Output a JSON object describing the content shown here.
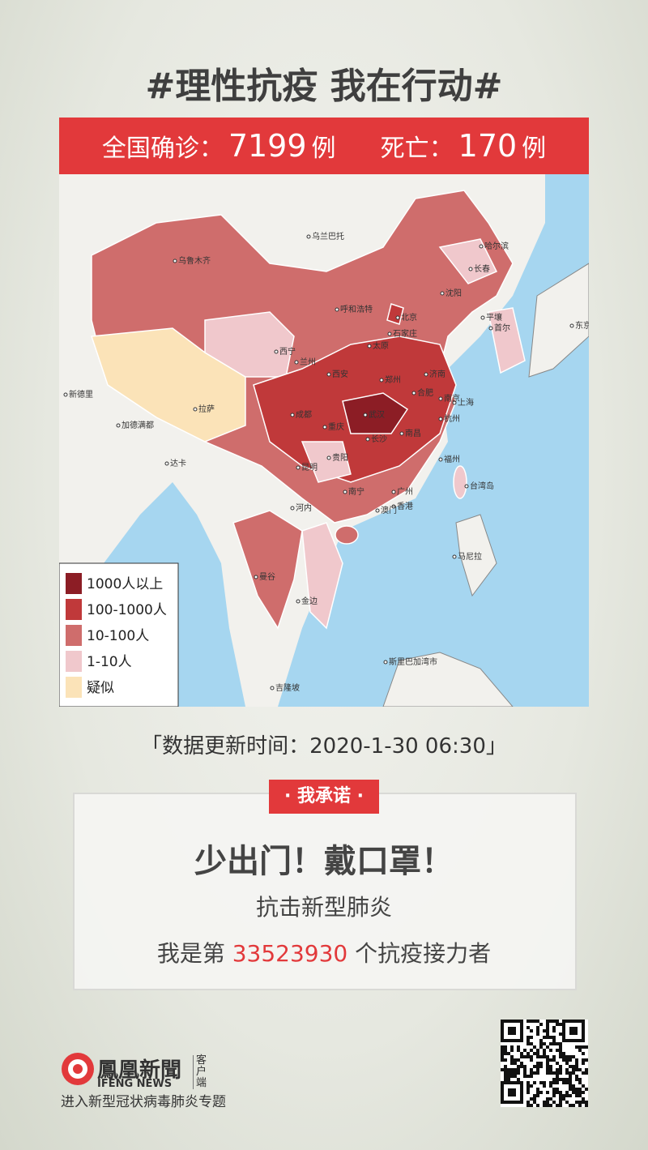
{
  "header": {
    "title": "#理性抗疫 我在行动#"
  },
  "banner": {
    "confirmed_label": "全国确诊：",
    "confirmed": 7199,
    "confirmed_unit": "例",
    "deaths_label": "死亡：",
    "deaths": 170,
    "deaths_unit": "例"
  },
  "map": {
    "legend": [
      {
        "label": "1000人以上",
        "color": "#8c1d25"
      },
      {
        "label": "100-1000人",
        "color": "#c0393a"
      },
      {
        "label": "10-100人",
        "color": "#cf6d6c"
      },
      {
        "label": "1-10人",
        "color": "#f0c8cc"
      },
      {
        "label": "疑似",
        "color": "#fbe3b8"
      }
    ],
    "labels": [
      "乌鲁木齐",
      "拉萨",
      "西宁",
      "成都",
      "重庆",
      "武汉",
      "长沙",
      "南昌",
      "杭州",
      "上海",
      "南京",
      "合肥",
      "济南",
      "郑州",
      "西安",
      "兰州",
      "北京",
      "石家庄",
      "太原",
      "呼和浩特",
      "沈阳",
      "长春",
      "哈尔滨",
      "贵阳",
      "昆明",
      "南宁",
      "广州",
      "香港",
      "澳门",
      "福州",
      "台湾岛",
      "乌兰巴托",
      "首尔",
      "平壤",
      "东京",
      "曼谷",
      "河内",
      "金边",
      "新德里",
      "加德满都",
      "达卡",
      "斯里巴加湾市",
      "马尼拉",
      "吉隆坡"
    ]
  },
  "update": "「数据更新时间：2020-1-30 06:30」",
  "pledge": {
    "tag": "· 我承诺 ·",
    "slogan": "少出门！戴口罩！",
    "line1": "抗击新型肺炎",
    "line2_prefix": "我是第",
    "rank": 33523930,
    "line2_suffix": "个抗疫接力者"
  },
  "footer": {
    "brand": "鳳凰新聞",
    "brand_en": "IFENG NEWS",
    "client": "客户端",
    "link": "进入新型冠状病毒肺炎专题"
  }
}
